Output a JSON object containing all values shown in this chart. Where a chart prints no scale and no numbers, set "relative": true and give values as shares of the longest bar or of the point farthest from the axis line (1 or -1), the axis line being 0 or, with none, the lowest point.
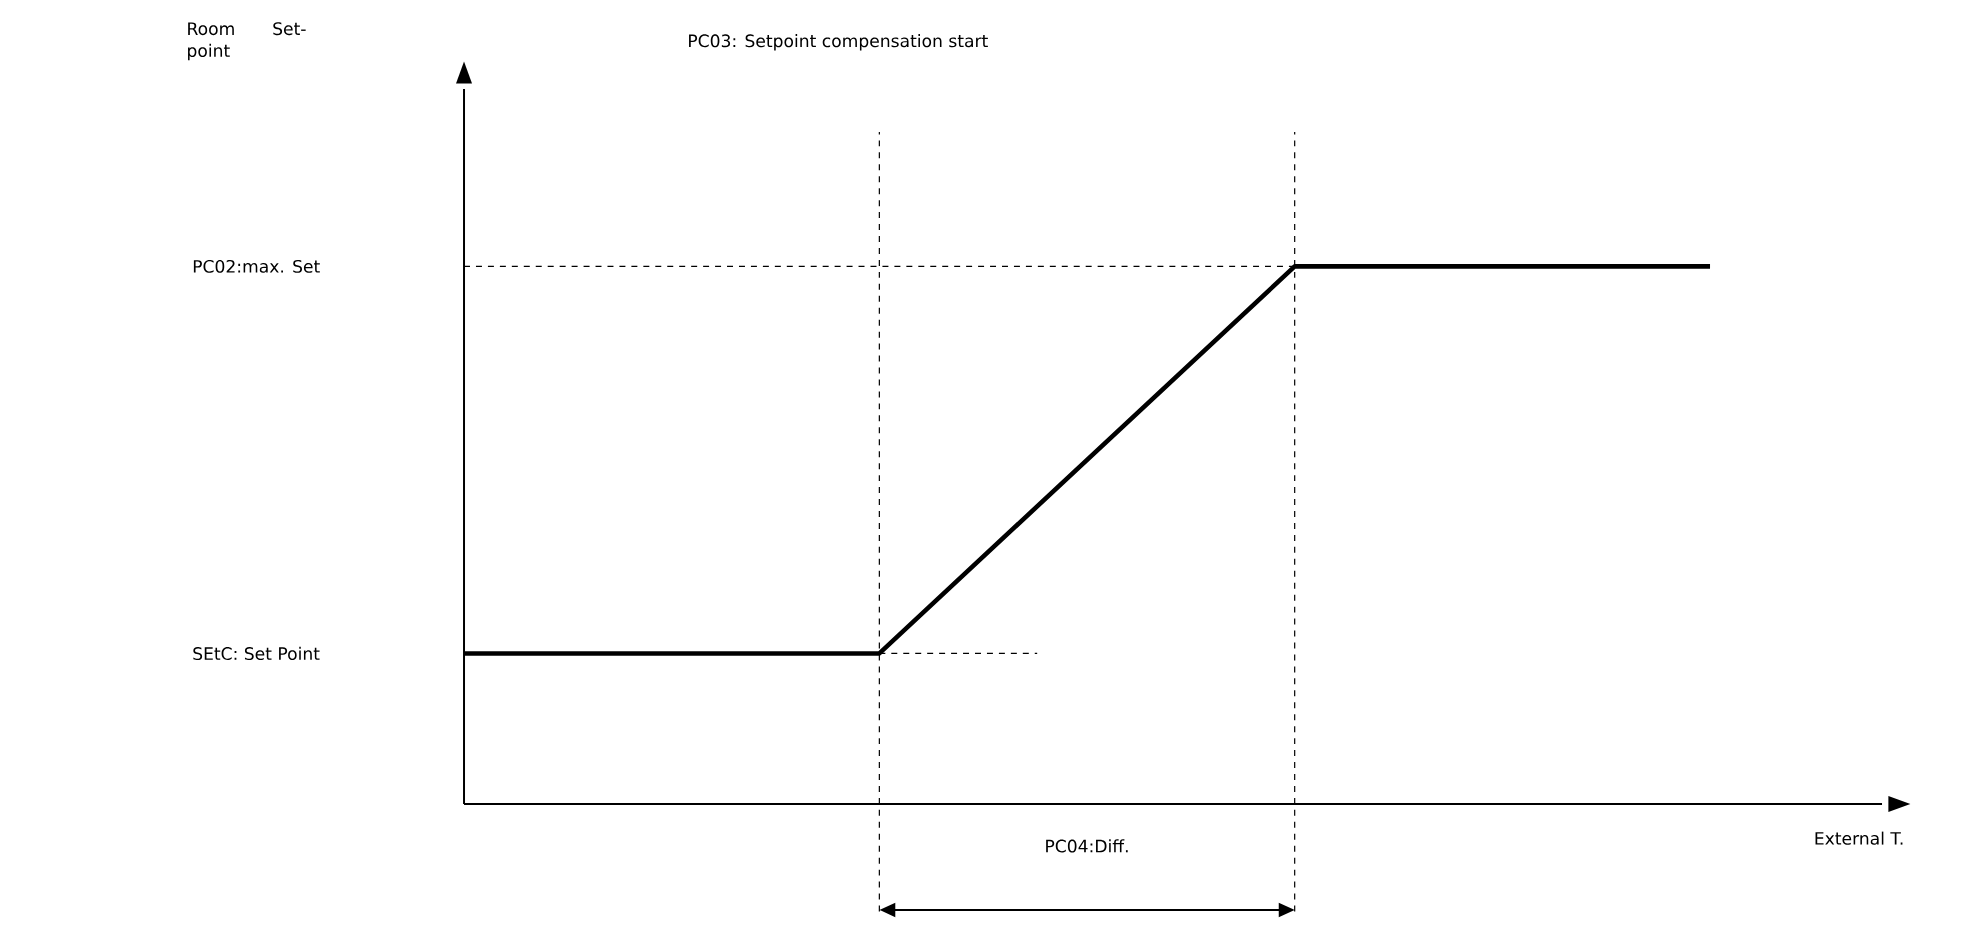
{
  "chart_data": {
    "type": "line",
    "relative": true,
    "xlabel": "External T.",
    "categories": [
      null,
      null,
      null,
      null
    ],
    "tick_labels": false,
    "series": [
      {
        "color": "#000000",
        "values": [
          0.28,
          0.28,
          1,
          1
        ]
      }
    ],
    "ref_lines": [
      {
        "axis": "y",
        "value": 1,
        "line_style": "dashed"
      },
      {
        "axis": "y",
        "value": 0.28,
        "line_style": "dashed"
      }
    ],
    "annotations": [
      "Room Set-point",
      "PC03: Setpoint compensation start",
      "PC02:max. Set",
      "SEtC: Set Point",
      "PC04:Diff."
    ]
  }
}
